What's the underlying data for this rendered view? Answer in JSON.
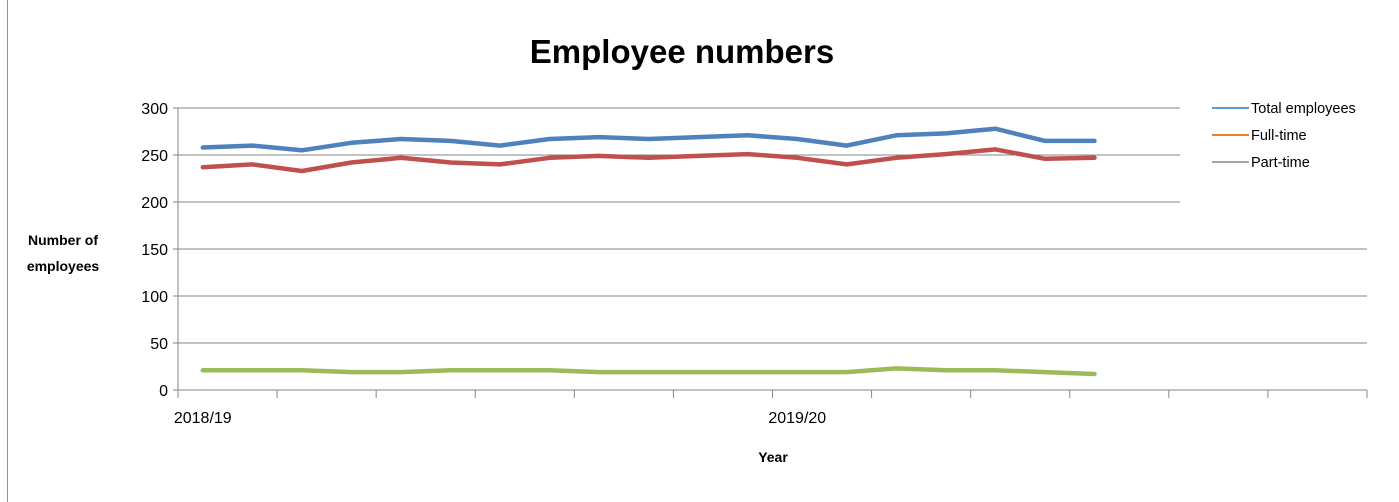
{
  "chart_data": {
    "type": "line",
    "title": "Employee numbers",
    "xlabel": "Year",
    "ylabel_lines": [
      "Number of",
      "employees"
    ],
    "ylim": [
      0,
      300
    ],
    "yticks": [
      0,
      50,
      100,
      150,
      200,
      250,
      300
    ],
    "grid": true,
    "legend_position": "top-right",
    "x_slot_count": 24,
    "x_tick_labels": [
      {
        "index": 0,
        "label": "2018/19"
      },
      {
        "index": 12,
        "label": "2019/20"
      }
    ],
    "series": [
      {
        "name": "Total employees",
        "legend_color": "#5b9bd5",
        "line_color": "#4f81bd",
        "values": [
          258,
          260,
          255,
          263,
          267,
          265,
          260,
          267,
          269,
          267,
          269,
          271,
          267,
          260,
          271,
          273,
          278,
          265,
          265
        ]
      },
      {
        "name": "Full-time",
        "legend_color": "#ed7d31",
        "line_color": "#c0504d",
        "values": [
          237,
          240,
          233,
          242,
          247,
          242,
          240,
          247,
          249,
          247,
          249,
          251,
          247,
          240,
          247,
          251,
          256,
          246,
          247
        ]
      },
      {
        "name": "Part-time",
        "legend_color": "#a5a5a5",
        "line_color": "#9bbb59",
        "values": [
          21,
          21,
          21,
          19,
          19,
          21,
          21,
          21,
          19,
          19,
          19,
          19,
          19,
          19,
          23,
          21,
          21,
          19,
          17
        ]
      }
    ]
  }
}
